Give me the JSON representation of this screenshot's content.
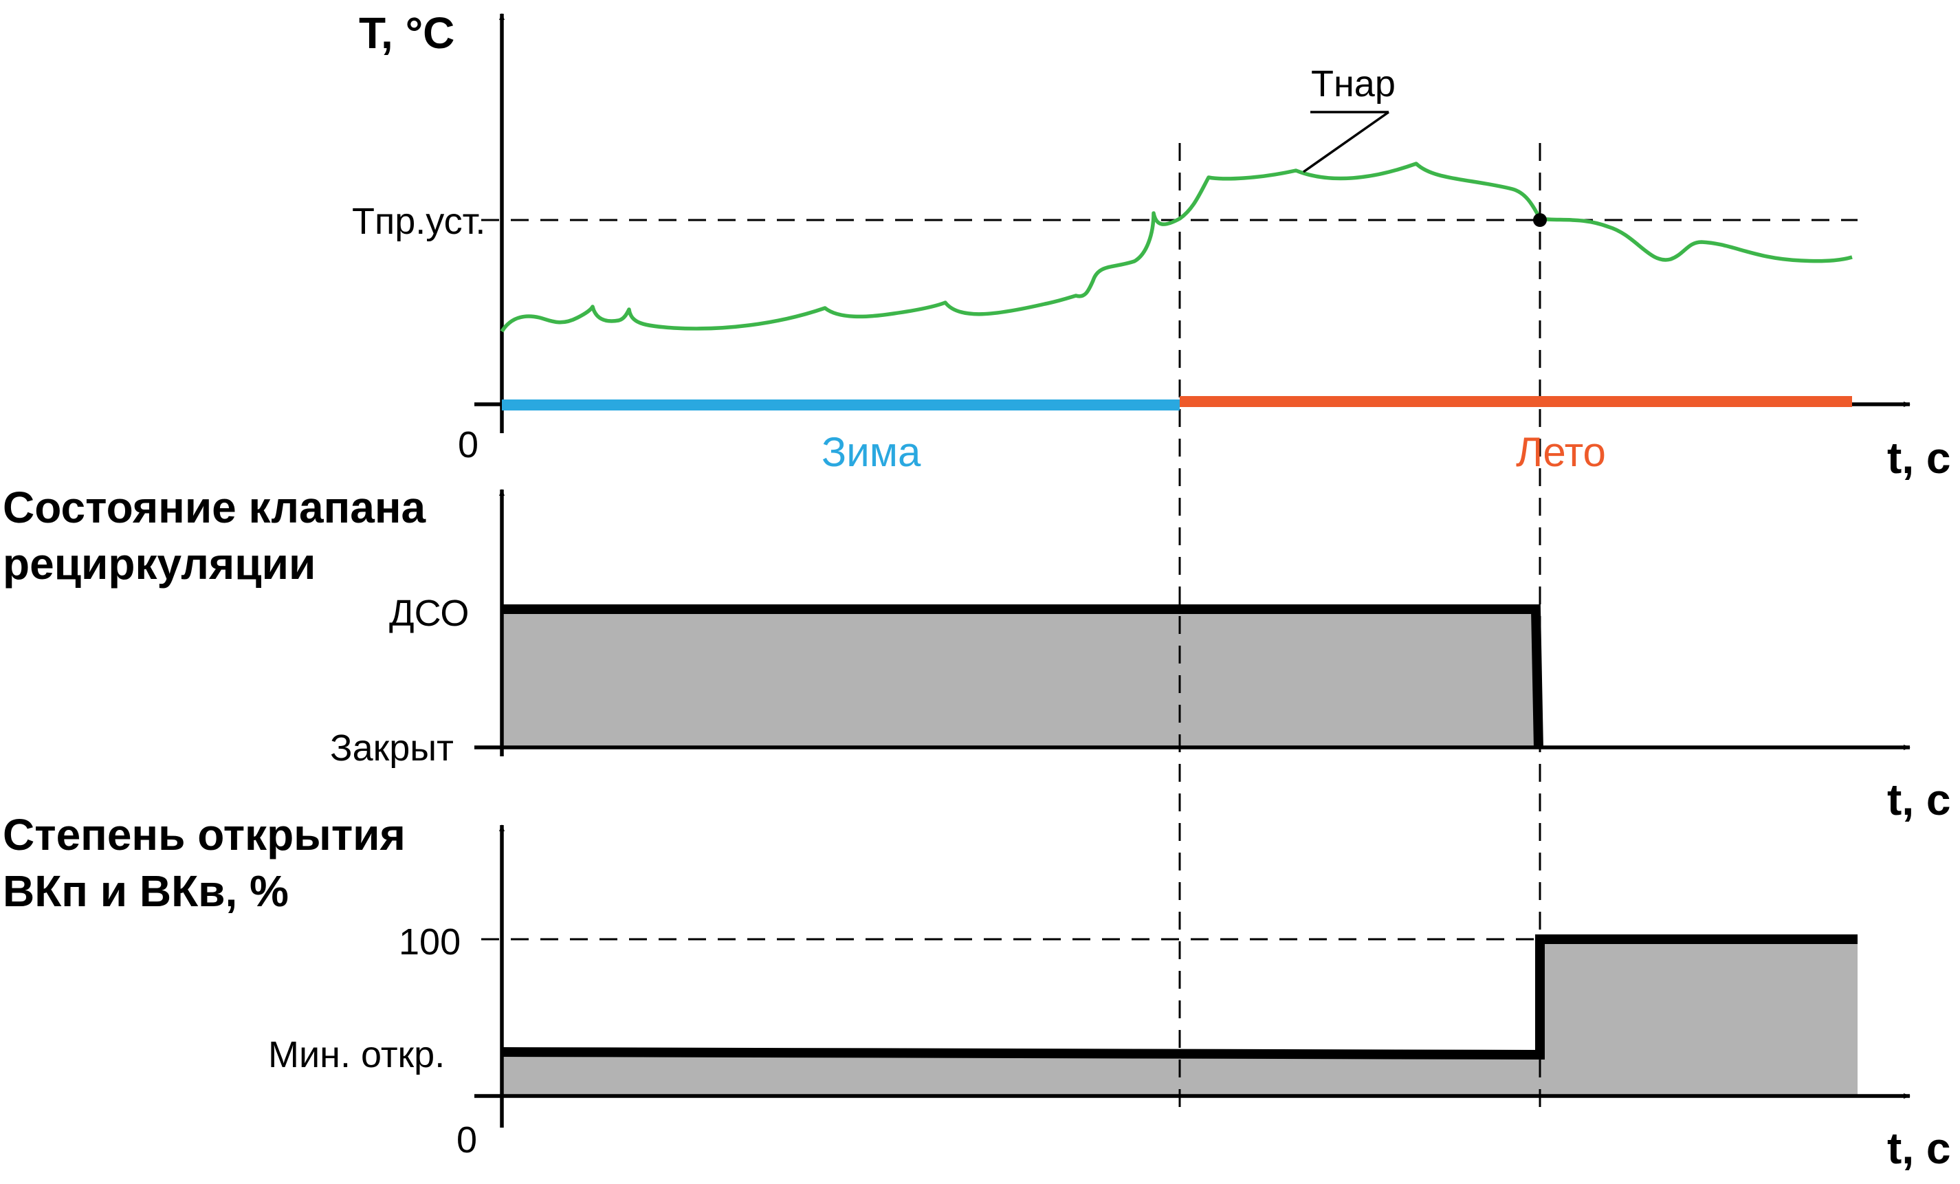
{
  "panel_temperature": {
    "y_axis_label": "T, °C",
    "x_axis_label": "t, c",
    "origin_label": "0",
    "setpoint_label": "Tпр.уст.",
    "curve_label": "Tнар",
    "season_winter": "Зима",
    "season_summer": "Лето",
    "color_winter": "#2AA8E0",
    "color_summer": "#EE5A2A",
    "color_curve": "#3DB54A"
  },
  "panel_valve": {
    "title_line1": "Состояние клапана",
    "title_line2": "рециркуляции",
    "level_high": "ДСО",
    "level_low": "Закрыт",
    "x_axis_label": "t, c"
  },
  "panel_dampers": {
    "title_line1": "Степень открытия",
    "title_line2": "ВКп и ВКв, %",
    "level_high": "100",
    "level_low": "Мин.  откр.",
    "origin_label": "0",
    "x_axis_label": "t, c"
  },
  "fill_color": "#B3B3B3"
}
